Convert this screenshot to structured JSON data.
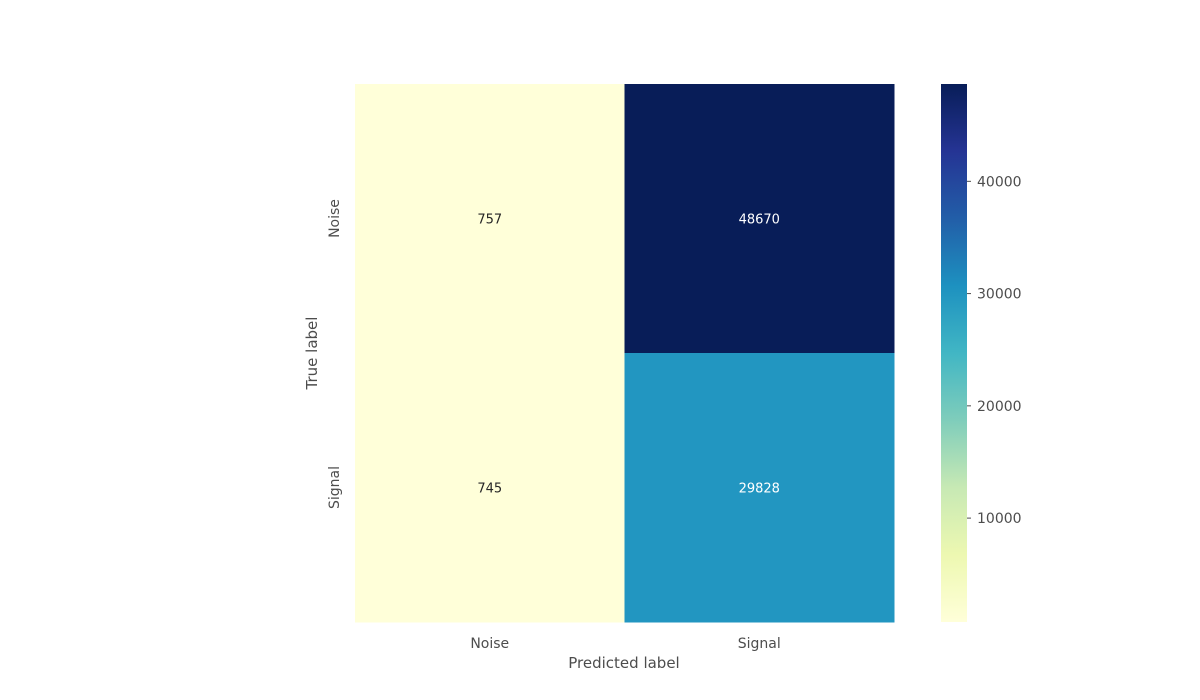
{
  "chart_data": {
    "type": "heatmap",
    "title": "",
    "xlabel": "Predicted label",
    "ylabel": "True label",
    "x_categories": [
      "Noise",
      "Signal"
    ],
    "y_categories": [
      "Noise",
      "Signal"
    ],
    "values": [
      [
        757,
        48670
      ],
      [
        745,
        29828
      ]
    ],
    "colormap": "YlGnBu",
    "colorbar": {
      "range": [
        745,
        48670
      ],
      "ticks": [
        10000,
        20000,
        30000,
        40000
      ],
      "tick_labels": [
        "10000",
        "20000",
        "30000",
        "40000"
      ]
    },
    "grid": false,
    "legend": "colorbar-right"
  }
}
